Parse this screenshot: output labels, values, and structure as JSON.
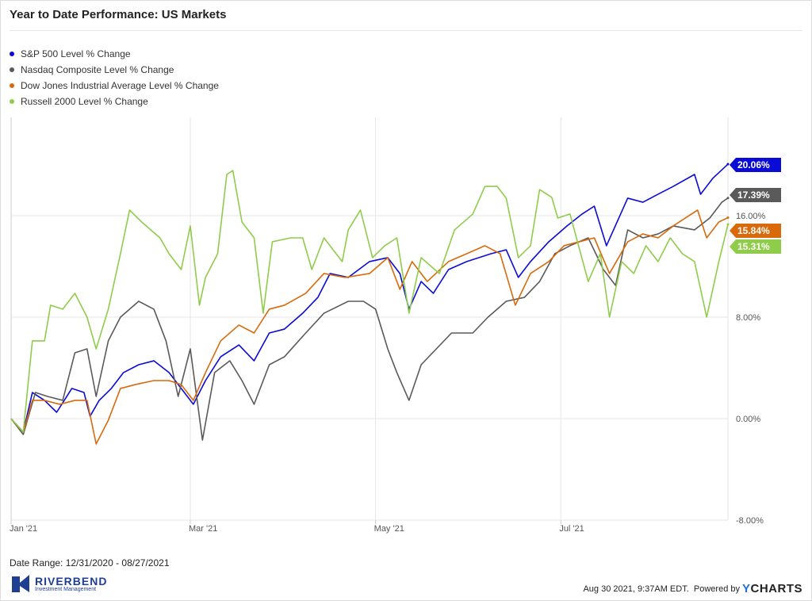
{
  "chart_data": {
    "type": "line",
    "title": "Year to Date Performance: US Markets",
    "xlabel": "",
    "ylabel": "",
    "x_unit": "days since 12/31/2020",
    "xlim": [
      0,
      236
    ],
    "ylim": [
      -8,
      23.75
    ],
    "yticks": [
      {
        "value": -8,
        "label": "-8.00%"
      },
      {
        "value": 0,
        "label": "0.00%"
      },
      {
        "value": 8,
        "label": "8.00%"
      },
      {
        "value": 16,
        "label": "16.00%"
      }
    ],
    "xticks": [
      {
        "value": 0,
        "label": "Jan '21"
      },
      {
        "value": 59,
        "label": "Mar '21"
      },
      {
        "value": 120,
        "label": "May '21"
      },
      {
        "value": 181,
        "label": "Jul '21"
      }
    ],
    "grid": true,
    "legend_position": "top-left",
    "series": [
      {
        "name": "S&P 500 Level % Change",
        "color": "#0b0bd6",
        "end_label": "20.06%",
        "points": [
          [
            0,
            0
          ],
          [
            4,
            -1.06
          ],
          [
            7,
            2.06
          ],
          [
            11,
            1.44
          ],
          [
            15,
            0.5
          ],
          [
            20,
            2.38
          ],
          [
            24,
            2.06
          ],
          [
            26,
            0.19
          ],
          [
            29,
            1.44
          ],
          [
            33,
            2.38
          ],
          [
            37,
            3.63
          ],
          [
            42,
            4.25
          ],
          [
            47,
            4.56
          ],
          [
            52,
            3.63
          ],
          [
            56,
            2.38
          ],
          [
            60,
            1.13
          ],
          [
            64,
            3
          ],
          [
            69,
            4.88
          ],
          [
            75,
            5.81
          ],
          [
            80,
            4.56
          ],
          [
            85,
            6.75
          ],
          [
            90,
            7.06
          ],
          [
            96,
            8.31
          ],
          [
            101,
            9.56
          ],
          [
            105,
            11.44
          ],
          [
            111,
            11.13
          ],
          [
            118,
            12.38
          ],
          [
            124,
            12.69
          ],
          [
            128,
            11.44
          ],
          [
            131,
            8.63
          ],
          [
            135,
            10.81
          ],
          [
            139,
            9.88
          ],
          [
            144,
            11.75
          ],
          [
            150,
            12.38
          ],
          [
            158,
            13
          ],
          [
            163,
            13.31
          ],
          [
            167,
            11.13
          ],
          [
            171,
            12.38
          ],
          [
            177,
            13.94
          ],
          [
            183,
            15.19
          ],
          [
            188,
            16.13
          ],
          [
            192,
            16.75
          ],
          [
            196,
            13.63
          ],
          [
            203,
            17.38
          ],
          [
            208,
            17.06
          ],
          [
            213,
            17.69
          ],
          [
            218,
            18.31
          ],
          [
            225,
            19.25
          ],
          [
            227,
            17.69
          ],
          [
            231,
            18.94
          ],
          [
            236,
            20.06
          ]
        ]
      },
      {
        "name": "Nasdaq Composite Level % Change",
        "color": "#5a5a5a",
        "end_label": "17.39%",
        "points": [
          [
            0,
            0
          ],
          [
            4,
            -1.25
          ],
          [
            8,
            2.06
          ],
          [
            12,
            1.75
          ],
          [
            17,
            1.44
          ],
          [
            21,
            5.19
          ],
          [
            25,
            5.5
          ],
          [
            28,
            1.75
          ],
          [
            32,
            6.13
          ],
          [
            36,
            8
          ],
          [
            42,
            9.25
          ],
          [
            47,
            8.63
          ],
          [
            51,
            6.13
          ],
          [
            55,
            1.75
          ],
          [
            59,
            5.5
          ],
          [
            63,
            -1.69
          ],
          [
            67,
            3.63
          ],
          [
            72,
            4.56
          ],
          [
            76,
            3
          ],
          [
            80,
            1.13
          ],
          [
            85,
            4.25
          ],
          [
            90,
            4.88
          ],
          [
            97,
            6.75
          ],
          [
            103,
            8.31
          ],
          [
            111,
            9.25
          ],
          [
            116,
            9.25
          ],
          [
            120,
            8.63
          ],
          [
            124,
            5.5
          ],
          [
            127,
            3.63
          ],
          [
            131,
            1.44
          ],
          [
            135,
            4.25
          ],
          [
            140,
            5.5
          ],
          [
            145,
            6.75
          ],
          [
            152,
            6.75
          ],
          [
            157,
            8
          ],
          [
            163,
            9.25
          ],
          [
            169,
            9.56
          ],
          [
            174,
            10.81
          ],
          [
            179,
            13
          ],
          [
            184,
            13.63
          ],
          [
            190,
            14.25
          ],
          [
            195,
            11.75
          ],
          [
            199,
            10.5
          ],
          [
            203,
            14.88
          ],
          [
            208,
            14.25
          ],
          [
            213,
            14.56
          ],
          [
            218,
            15.19
          ],
          [
            225,
            14.88
          ],
          [
            230,
            15.81
          ],
          [
            234,
            17.06
          ],
          [
            236,
            17.39
          ]
        ]
      },
      {
        "name": "Dow Jones Industrial Average Level % Change",
        "color": "#d96a0b",
        "end_label": "15.84%",
        "points": [
          [
            0,
            0
          ],
          [
            4,
            -1.06
          ],
          [
            7,
            1.44
          ],
          [
            11,
            1.44
          ],
          [
            16,
            1.13
          ],
          [
            21,
            1.44
          ],
          [
            25,
            1.44
          ],
          [
            28,
            -2
          ],
          [
            32,
            -0.13
          ],
          [
            36,
            2.38
          ],
          [
            41,
            2.69
          ],
          [
            47,
            3
          ],
          [
            52,
            3
          ],
          [
            56,
            2.69
          ],
          [
            60,
            1.44
          ],
          [
            64,
            3.63
          ],
          [
            69,
            6.13
          ],
          [
            75,
            7.38
          ],
          [
            80,
            6.75
          ],
          [
            85,
            8.63
          ],
          [
            90,
            8.94
          ],
          [
            97,
            9.88
          ],
          [
            103,
            11.44
          ],
          [
            110,
            11.13
          ],
          [
            118,
            11.44
          ],
          [
            124,
            12.69
          ],
          [
            128,
            10.19
          ],
          [
            132,
            12.38
          ],
          [
            137,
            10.81
          ],
          [
            144,
            12.38
          ],
          [
            150,
            13
          ],
          [
            156,
            13.63
          ],
          [
            161,
            13
          ],
          [
            166,
            8.94
          ],
          [
            171,
            11.44
          ],
          [
            177,
            12.38
          ],
          [
            182,
            13.63
          ],
          [
            187,
            13.94
          ],
          [
            192,
            14.25
          ],
          [
            197,
            11.44
          ],
          [
            203,
            13.94
          ],
          [
            208,
            14.56
          ],
          [
            213,
            14.25
          ],
          [
            218,
            15.19
          ],
          [
            226,
            16.44
          ],
          [
            229,
            14.25
          ],
          [
            233,
            15.5
          ],
          [
            236,
            15.84
          ]
        ]
      },
      {
        "name": "Russell 2000 Level % Change",
        "color": "#8fcc4a",
        "end_label": "15.31%",
        "points": [
          [
            0,
            0
          ],
          [
            4,
            -1.06
          ],
          [
            7,
            6.13
          ],
          [
            11,
            6.13
          ],
          [
            13,
            8.94
          ],
          [
            17,
            8.63
          ],
          [
            21,
            9.88
          ],
          [
            25,
            8
          ],
          [
            28,
            5.5
          ],
          [
            32,
            8.63
          ],
          [
            36,
            13
          ],
          [
            39,
            16.44
          ],
          [
            43,
            15.5
          ],
          [
            49,
            14.25
          ],
          [
            52,
            13
          ],
          [
            56,
            11.75
          ],
          [
            59,
            15.19
          ],
          [
            62,
            8.94
          ],
          [
            64,
            11.13
          ],
          [
            68,
            13
          ],
          [
            71,
            19.25
          ],
          [
            73,
            19.56
          ],
          [
            76,
            15.5
          ],
          [
            80,
            14.25
          ],
          [
            83,
            8.31
          ],
          [
            86,
            13.94
          ],
          [
            92,
            14.25
          ],
          [
            96,
            14.25
          ],
          [
            99,
            11.75
          ],
          [
            103,
            14.25
          ],
          [
            109,
            12.38
          ],
          [
            111,
            14.88
          ],
          [
            115,
            16.44
          ],
          [
            119,
            12.69
          ],
          [
            123,
            13.63
          ],
          [
            127,
            14.25
          ],
          [
            131,
            8.31
          ],
          [
            135,
            12.69
          ],
          [
            141,
            11.44
          ],
          [
            146,
            14.88
          ],
          [
            152,
            16.13
          ],
          [
            156,
            18.31
          ],
          [
            160,
            18.31
          ],
          [
            163,
            17.38
          ],
          [
            167,
            12.69
          ],
          [
            171,
            13.63
          ],
          [
            174,
            18.06
          ],
          [
            178,
            17.44
          ],
          [
            180,
            15.81
          ],
          [
            184,
            16.13
          ],
          [
            190,
            10.81
          ],
          [
            194,
            13
          ],
          [
            197,
            8
          ],
          [
            201,
            12.38
          ],
          [
            205,
            11.44
          ],
          [
            209,
            13.63
          ],
          [
            213,
            12.38
          ],
          [
            217,
            14.25
          ],
          [
            221,
            13
          ],
          [
            225,
            12.38
          ],
          [
            229,
            8
          ],
          [
            233,
            12.38
          ],
          [
            236,
            15.31
          ]
        ]
      }
    ]
  },
  "date_range": "Date Range: 12/31/2020 - 08/27/2021",
  "logo": {
    "name": "RIVERBEND",
    "tagline": "Investment Management"
  },
  "footer": {
    "timestamp": "Aug 30 2021, 9:37AM EDT.",
    "powered_by": "Powered by",
    "brand_y": "Y",
    "brand_rest": "CHARTS"
  }
}
